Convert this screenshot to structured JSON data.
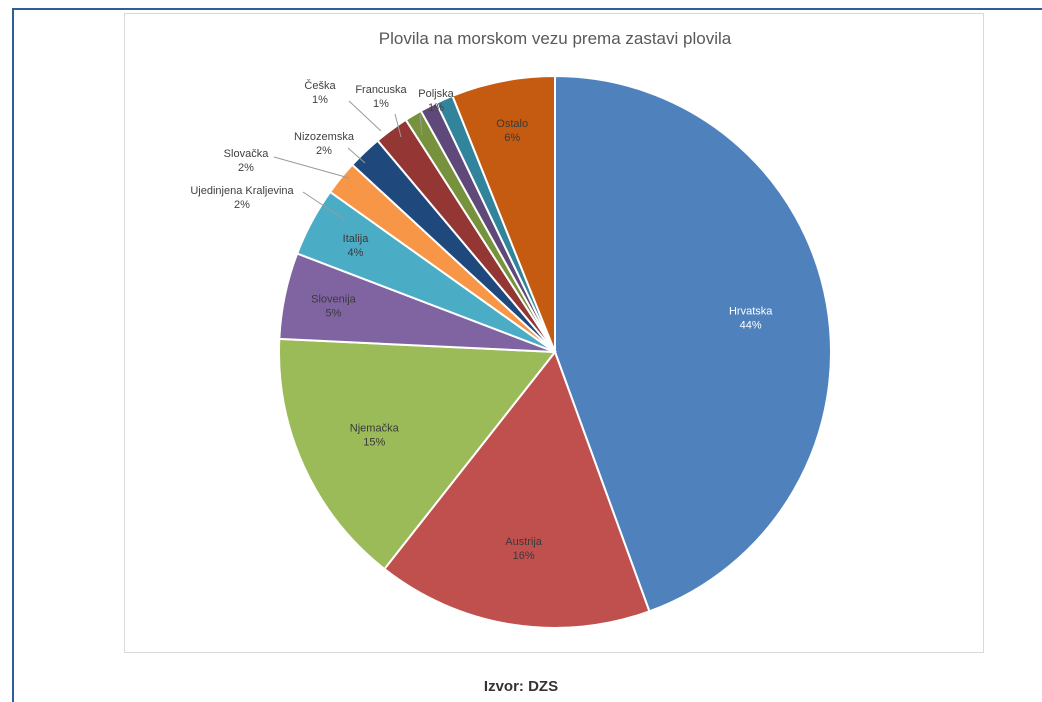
{
  "source_label": "Izvor: DZS",
  "chart_data": {
    "type": "pie",
    "title": "Plovila na morskom vezu prema zastavi plovila",
    "slices": [
      {
        "label": "Hrvatska",
        "percent_label": "44%",
        "value": 44,
        "color": "#4f81bd",
        "label_mode": "inside"
      },
      {
        "label": "Austrija",
        "percent_label": "16%",
        "value": 16,
        "color": "#c0504d",
        "label_mode": "inside"
      },
      {
        "label": "Njemačka",
        "percent_label": "15%",
        "value": 15,
        "color": "#9bbb59",
        "label_mode": "inside"
      },
      {
        "label": "Slovenija",
        "percent_label": "5%",
        "value": 5,
        "color": "#8064a2",
        "label_mode": "inside"
      },
      {
        "label": "Italija",
        "percent_label": "4%",
        "value": 4,
        "color": "#4bacc6",
        "label_mode": "inside"
      },
      {
        "label": "Ujedinjena Kraljevina",
        "percent_label": "2%",
        "value": 2,
        "color": "#f79646",
        "label_mode": "outside"
      },
      {
        "label": "Slovačka",
        "percent_label": "2%",
        "value": 2,
        "color": "#1f497d",
        "label_mode": "outside"
      },
      {
        "label": "Nizozemska",
        "percent_label": "2%",
        "value": 2,
        "color": "#943634",
        "label_mode": "outside"
      },
      {
        "label": "Češka",
        "percent_label": "1%",
        "value": 1,
        "color": "#76923c",
        "label_mode": "outside"
      },
      {
        "label": "Francuska",
        "percent_label": "1%",
        "value": 1,
        "color": "#5f497a",
        "label_mode": "outside"
      },
      {
        "label": "Poljska",
        "percent_label": "1%",
        "value": 1,
        "color": "#31849b",
        "label_mode": "outside"
      },
      {
        "label": "Ostalo",
        "percent_label": "6%",
        "value": 6,
        "color": "#c55a11",
        "label_mode": "inside"
      }
    ],
    "start_angle": "12 o'clock",
    "direction": "clockwise",
    "legend": "none",
    "data_labels": "category name and percentage"
  }
}
